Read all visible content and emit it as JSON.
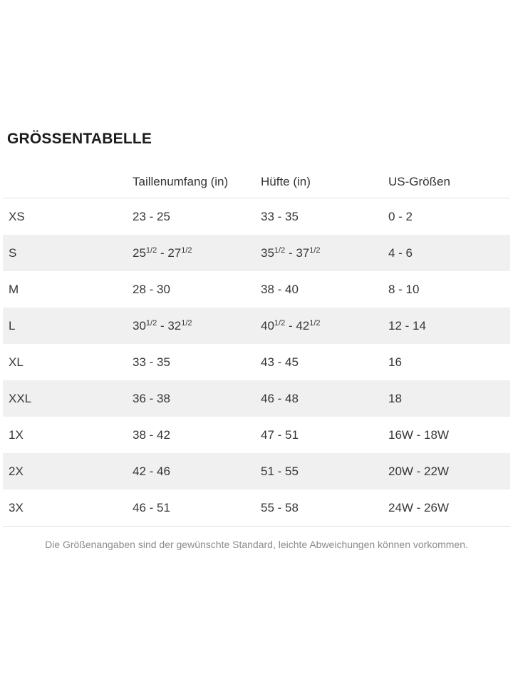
{
  "page": {
    "title": "GRÖSSENTABELLE",
    "footnote": "Die Größenangaben sind der gewünschte Standard, leichte Abweichungen können vorkommen."
  },
  "table": {
    "columns": {
      "size": "",
      "waist": "Taillenumfang (in)",
      "hip": "Hüfte (in)",
      "us": "US-Größen"
    },
    "rows": [
      {
        "size": "XS",
        "waist": "23 - 25",
        "hip": "33 - 35",
        "us": "0 - 2"
      },
      {
        "size": "S",
        "waist": "25½ - 27½",
        "hip": "35½ - 37½",
        "us": "4 - 6"
      },
      {
        "size": "M",
        "waist": "28 - 30",
        "hip": "38 - 40",
        "us": "8 - 10"
      },
      {
        "size": "L",
        "waist": "30½ - 32½",
        "hip": "40½ - 42½",
        "us": "12 - 14"
      },
      {
        "size": "XL",
        "waist": "33 - 35",
        "hip": "43 - 45",
        "us": "16"
      },
      {
        "size": "XXL",
        "waist": "36 - 38",
        "hip": "46 - 48",
        "us": "18"
      },
      {
        "size": "1X",
        "waist": "38 - 42",
        "hip": "47 - 51",
        "us": "16W - 18W"
      },
      {
        "size": "2X",
        "waist": "42 - 46",
        "hip": "51 - 55",
        "us": "20W - 22W"
      },
      {
        "size": "3X",
        "waist": "46 - 51",
        "hip": "55 - 58",
        "us": "24W - 26W"
      }
    ],
    "colors": {
      "stripe": "#f0f0f0",
      "divider": "#e2e2e2",
      "text": "#363636",
      "footnote_text": "#8c8c8c"
    }
  }
}
